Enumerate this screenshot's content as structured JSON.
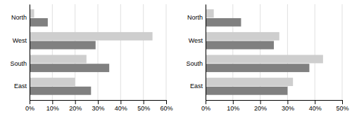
{
  "chart_data": [
    {
      "type": "bar",
      "orientation": "horizontal",
      "categories": [
        "North",
        "West",
        "South",
        "East"
      ],
      "series": [
        {
          "color": "#cecece",
          "values": [
            2,
            54,
            25,
            20
          ]
        },
        {
          "color": "#808080",
          "values": [
            8,
            29,
            35,
            27
          ]
        }
      ],
      "xlim": [
        0,
        60
      ],
      "xticks": [
        {
          "value": 0,
          "label": "0%"
        },
        {
          "value": 10,
          "label": "10%"
        },
        {
          "value": 20,
          "label": "20%"
        },
        {
          "value": 30,
          "label": "30%"
        },
        {
          "value": 40,
          "label": "40%"
        },
        {
          "value": 50,
          "label": "50%"
        },
        {
          "value": 60,
          "label": "60%"
        }
      ],
      "grid": true
    },
    {
      "type": "bar",
      "orientation": "horizontal",
      "categories": [
        "North",
        "West",
        "South",
        "East"
      ],
      "series": [
        {
          "color": "#cecece",
          "values": [
            3,
            27,
            43,
            32
          ]
        },
        {
          "color": "#808080",
          "values": [
            13,
            25,
            38,
            30
          ]
        }
      ],
      "xlim": [
        0,
        50
      ],
      "xticks": [
        {
          "value": 0,
          "label": "0%"
        },
        {
          "value": 10,
          "label": "10%"
        },
        {
          "value": 20,
          "label": "20%"
        },
        {
          "value": 30,
          "label": "30%"
        },
        {
          "value": 40,
          "label": "40%"
        },
        {
          "value": 50,
          "label": "50%"
        }
      ],
      "grid": true
    }
  ]
}
